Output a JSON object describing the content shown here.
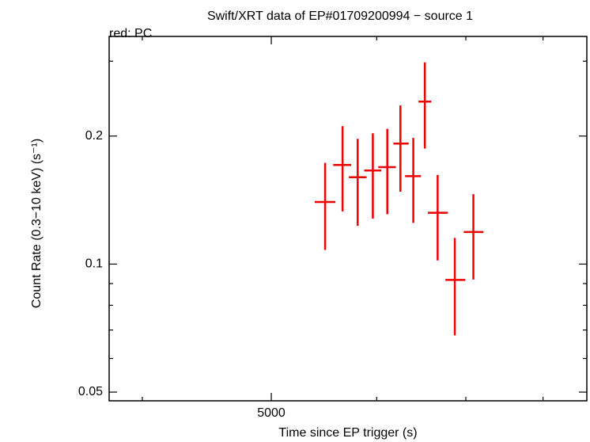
{
  "chart_data": {
    "type": "errorbar",
    "title": "Swift/XRT data of EP#01709200994 − source 1",
    "subtitle": "red: PC",
    "xlabel": "Time since EP trigger (s)",
    "ylabel": "Count Rate (0.3−10 keV) (s⁻¹)",
    "xlog": true,
    "ylog": true,
    "xlim": [
      3777,
      8630
    ],
    "ylim": [
      0.0477,
      0.343
    ],
    "xticks": [
      5000
    ],
    "xminorticks": [
      4000,
      6000,
      7000,
      8000
    ],
    "yticks": [
      0.05,
      0.1,
      0.2
    ],
    "yminorticks": [
      0.06,
      0.07,
      0.08,
      0.09,
      0.3
    ],
    "series": [
      {
        "name": "PC",
        "color": "#ee0000",
        "x": [
          5488,
          5656,
          5806,
          5960,
          6111,
          6251,
          6392,
          6521,
          6667,
          6868,
          7092
        ],
        "x_minus": [
          98,
          91,
          88,
          88,
          95,
          75,
          90,
          72,
          112,
          111,
          117
        ],
        "x_plus": [
          98,
          85,
          90,
          88,
          91,
          90,
          86,
          73,
          119,
          126,
          125
        ],
        "values": [
          0.14,
          0.171,
          0.16,
          0.166,
          0.169,
          0.192,
          0.161,
          0.241,
          0.132,
          0.0918,
          0.119
        ],
        "y_minus": [
          0.032,
          0.038,
          0.037,
          0.038,
          0.038,
          0.044,
          0.036,
          0.054,
          0.03,
          0.0238,
          0.027
        ],
        "y_plus": [
          0.033,
          0.04,
          0.037,
          0.037,
          0.039,
          0.044,
          0.037,
          0.057,
          0.03,
          0.0234,
          0.027
        ]
      }
    ]
  }
}
